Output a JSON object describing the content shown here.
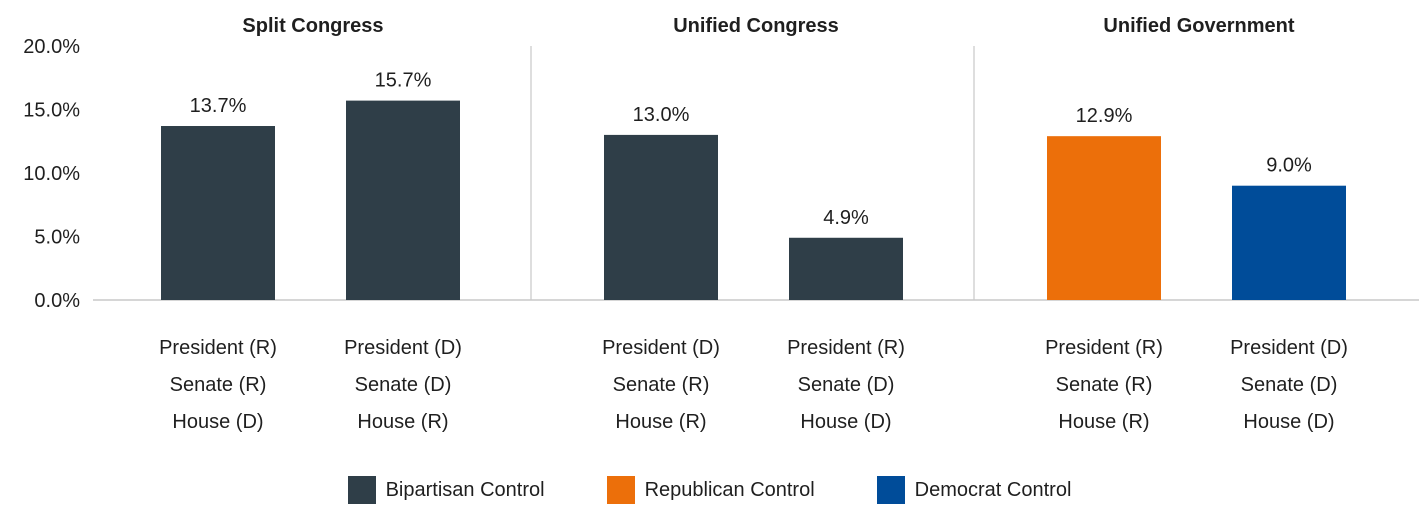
{
  "chart_data": {
    "type": "bar",
    "ylim": [
      0,
      20
    ],
    "yticks": [
      "0.0%",
      "5.0%",
      "10.0%",
      "15.0%",
      "20.0%"
    ],
    "y_tick_values": [
      0,
      5,
      10,
      15,
      20
    ],
    "groups": [
      {
        "title": "Split Congress",
        "bars": [
          {
            "lines": [
              "President (R)",
              "Senate (R)",
              "House (D)"
            ],
            "value": 13.7,
            "label": "13.7%",
            "control": "bipartisan"
          },
          {
            "lines": [
              "President (D)",
              "Senate (D)",
              "House (R)"
            ],
            "value": 15.7,
            "label": "15.7%",
            "control": "bipartisan"
          }
        ]
      },
      {
        "title": "Unified Congress",
        "bars": [
          {
            "lines": [
              "President (D)",
              "Senate (R)",
              "House (R)"
            ],
            "value": 13.0,
            "label": "13.0%",
            "control": "bipartisan"
          },
          {
            "lines": [
              "President (R)",
              "Senate (D)",
              "House (D)"
            ],
            "value": 4.9,
            "label": "4.9%",
            "control": "bipartisan"
          }
        ]
      },
      {
        "title": "Unified Government",
        "bars": [
          {
            "lines": [
              "President (R)",
              "Senate (R)",
              "House (R)"
            ],
            "value": 12.9,
            "label": "12.9%",
            "control": "republican"
          },
          {
            "lines": [
              "President (D)",
              "Senate (D)",
              "House (D)"
            ],
            "value": 9.0,
            "label": "9.0%",
            "control": "democrat"
          }
        ]
      }
    ],
    "legend": [
      {
        "key": "bipartisan",
        "label": "Bipartisan Control",
        "color": "#2f3e48"
      },
      {
        "key": "republican",
        "label": "Republican Control",
        "color": "#ec6f0a"
      },
      {
        "key": "democrat",
        "label": "Democrat Control",
        "color": "#004c99"
      }
    ],
    "grid": false,
    "legend_position": "bottom"
  }
}
